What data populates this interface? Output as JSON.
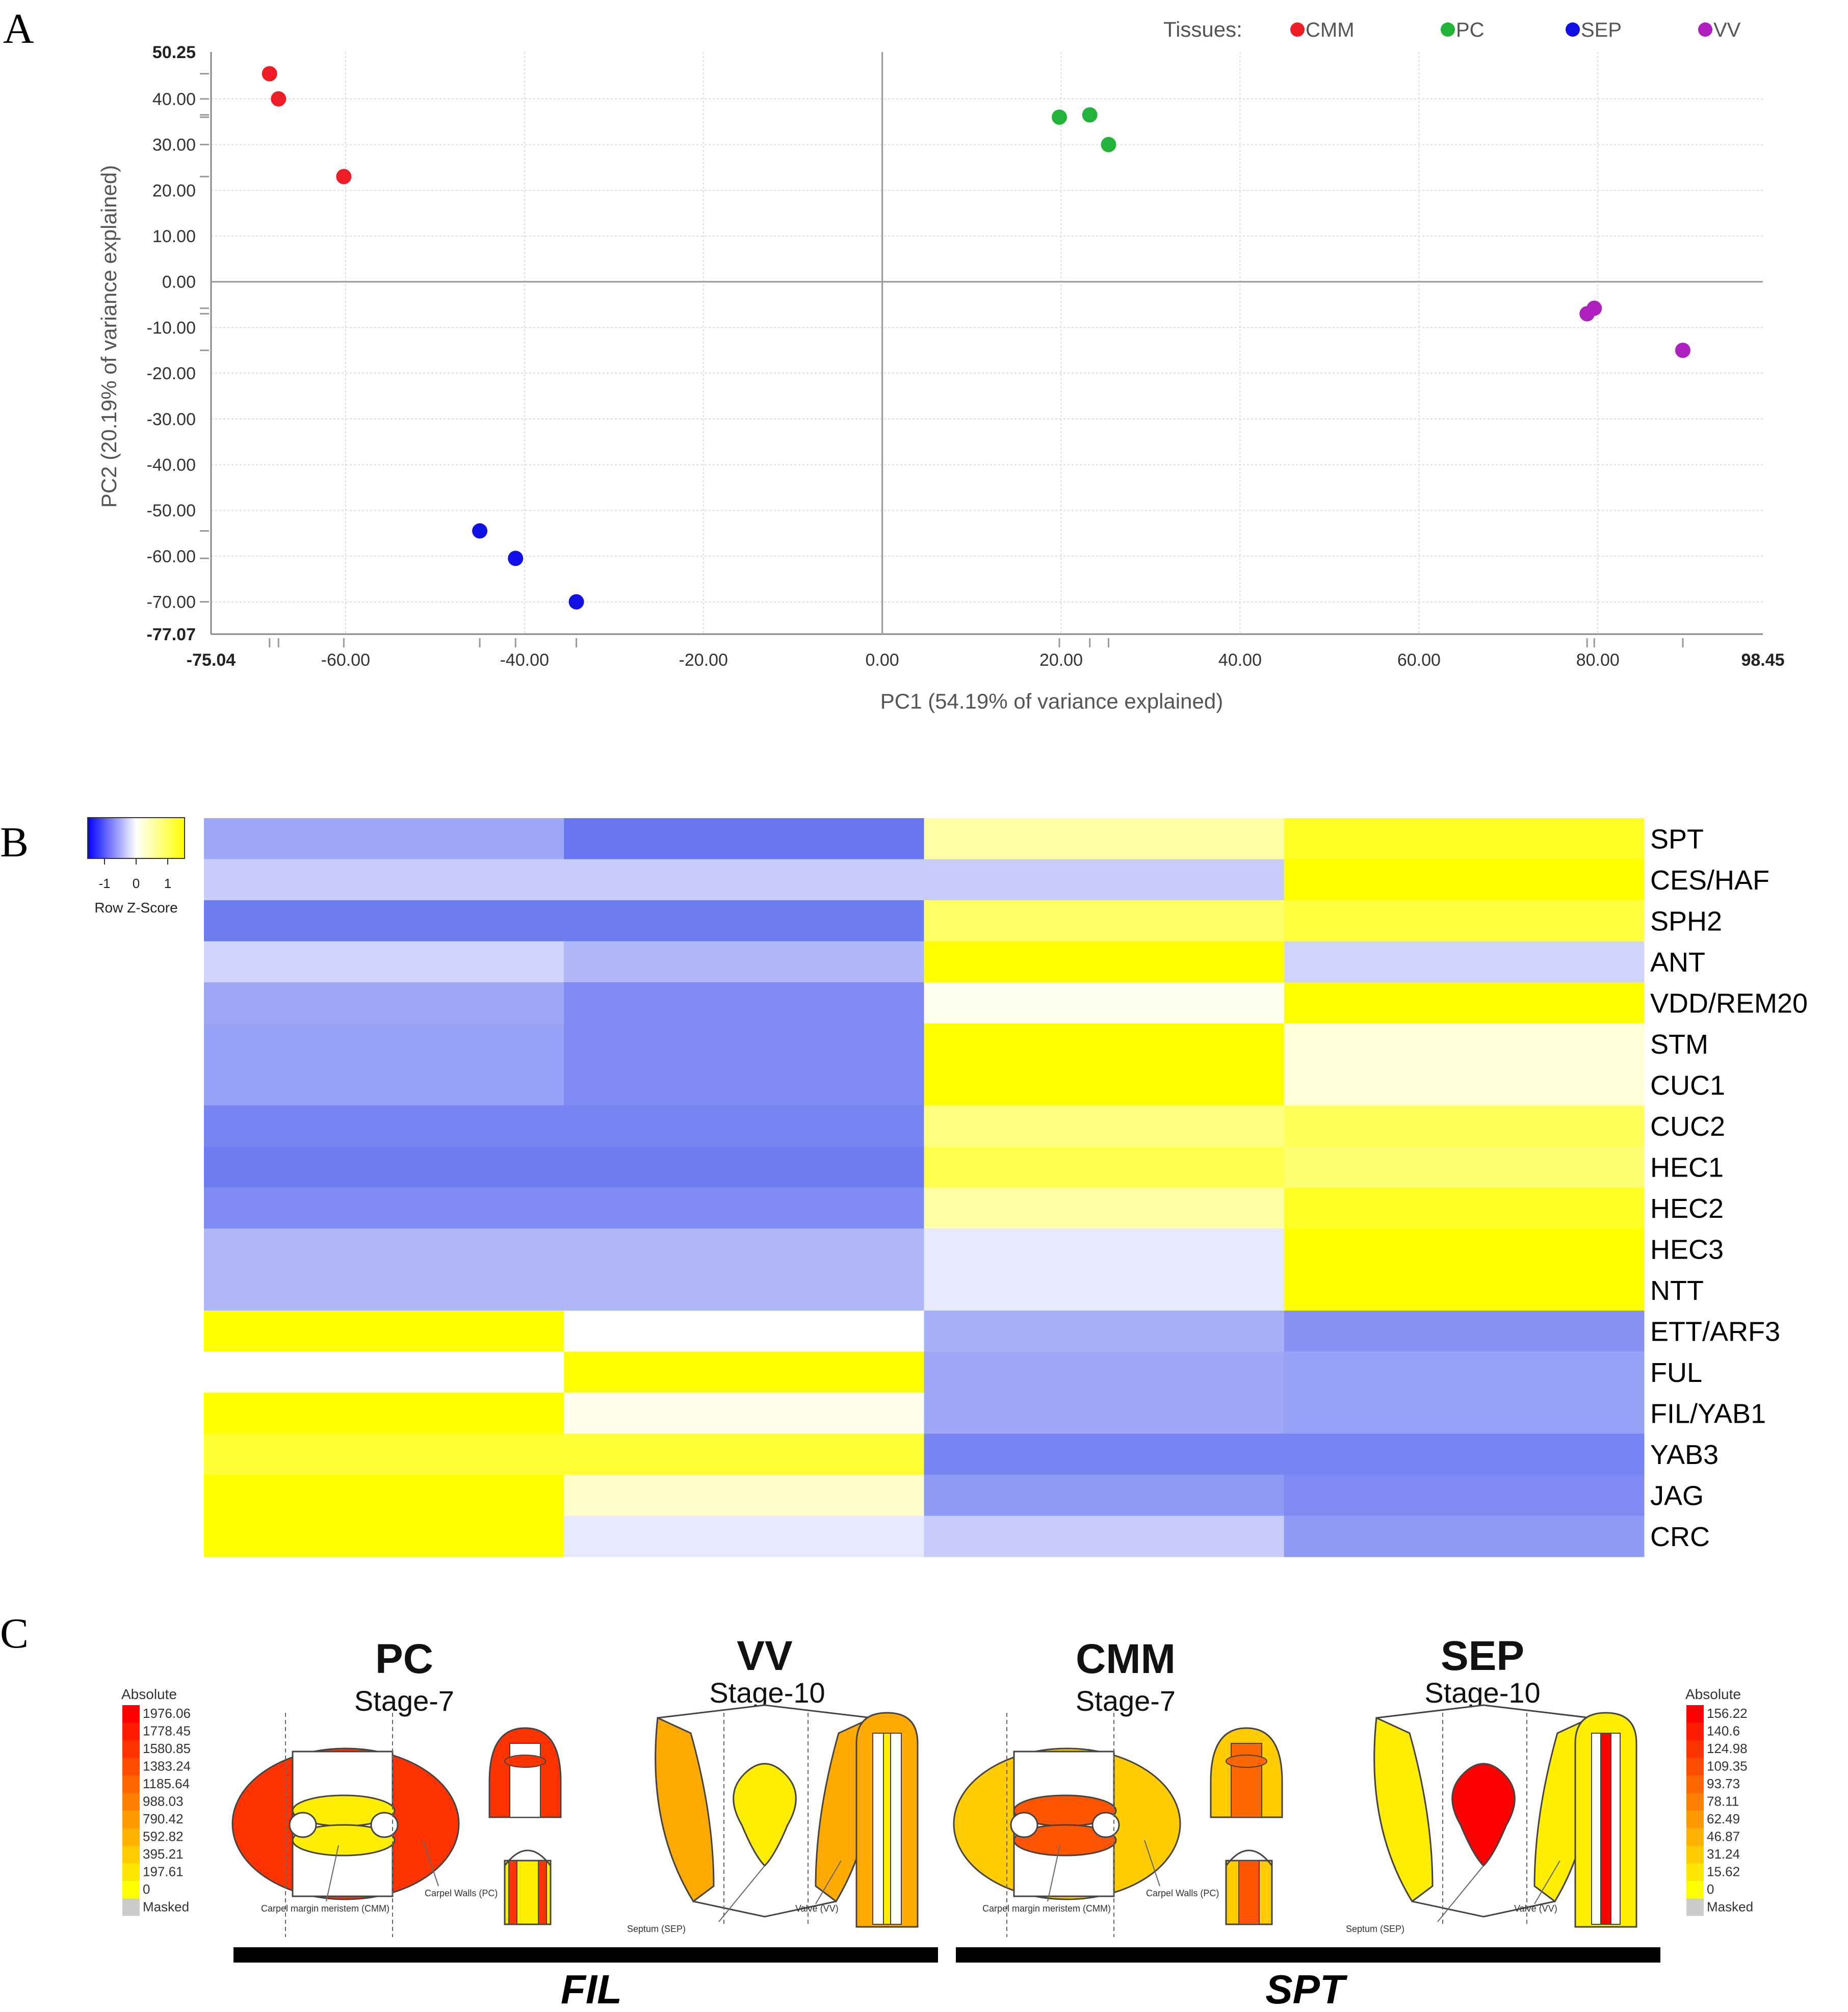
{
  "panel_labels": {
    "a": "A",
    "b": "B",
    "c": "C"
  },
  "chart_data": [
    {
      "type": "scatter",
      "legend_title": "Tissues:",
      "legend_position": "top-right",
      "xlabel": "PC1 (54.19% of variance explained)",
      "ylabel": "PC2 (20.19% of variance explained)",
      "xlim": [
        -75.04,
        98.45
      ],
      "ylim": [
        -77.07,
        50.25
      ],
      "x_ticks": [
        -60,
        -40,
        -20,
        0,
        20,
        40,
        60,
        80
      ],
      "y_ticks": [
        40,
        30,
        20,
        10,
        0,
        -10,
        -20,
        -30,
        -40,
        -50,
        -60,
        -70
      ],
      "x_tick_labels": [
        "-60.00",
        "-40.00",
        "-20.00",
        "0.00",
        "20.00",
        "40.00",
        "60.00",
        "80.00"
      ],
      "y_tick_labels": [
        "40.00",
        "30.00",
        "20.00",
        "10.00",
        "0.00",
        "-10.00",
        "-20.00",
        "-30.00",
        "-40.00",
        "-50.00",
        "-60.00",
        "-70.00"
      ],
      "x_bound_labels": [
        "-75.04",
        "98.45"
      ],
      "y_bound_labels": [
        "50.25",
        "-77.07"
      ],
      "grid": true,
      "series": [
        {
          "name": "CMM",
          "color": "#ee1c25",
          "points": [
            [
              -68.5,
              45.5
            ],
            [
              -67.5,
              40.0
            ],
            [
              -60.2,
              23.0
            ]
          ]
        },
        {
          "name": "PC",
          "color": "#22b33a",
          "points": [
            [
              19.8,
              36.0
            ],
            [
              23.2,
              36.5
            ],
            [
              25.3,
              30.0
            ]
          ]
        },
        {
          "name": "SEP",
          "color": "#1010e6",
          "points": [
            [
              -45.0,
              -54.5
            ],
            [
              -41.0,
              -60.5
            ],
            [
              -34.2,
              -70.0
            ]
          ]
        },
        {
          "name": "VV",
          "color": "#b01fc0",
          "points": [
            [
              78.8,
              -7.0
            ],
            [
              79.6,
              -5.8
            ],
            [
              89.5,
              -15.0
            ]
          ]
        }
      ]
    },
    {
      "type": "heatmap",
      "colorbar": {
        "label": "Row Z-Score",
        "ticks": [
          "-1",
          "0",
          "1"
        ]
      },
      "rows": [
        "SPT",
        "CES/HAF",
        "SPH2",
        "ANT",
        "VDD/REM20",
        "STM",
        "CUC1",
        "CUC2",
        "HEC1",
        "HEC2",
        "HEC3",
        "NTT",
        "ETT/ARF3",
        "FUL",
        "FIL/YAB1",
        "YAB3",
        "JAG",
        "CRC"
      ],
      "columns": 4,
      "z_values": [
        [
          -0.6,
          -0.95,
          0.35,
          0.85
        ],
        [
          -0.35,
          -0.35,
          -0.35,
          1.0
        ],
        [
          -0.9,
          -0.9,
          0.6,
          0.75
        ],
        [
          -0.3,
          -0.5,
          1.0,
          -0.3
        ],
        [
          -0.6,
          -0.8,
          0.05,
          1.0
        ],
        [
          -0.65,
          -0.8,
          1.0,
          0.15
        ],
        [
          -0.65,
          -0.8,
          1.0,
          0.15
        ],
        [
          -0.85,
          -0.85,
          0.5,
          0.65
        ],
        [
          -0.9,
          -0.9,
          0.7,
          0.55
        ],
        [
          -0.8,
          -0.8,
          0.35,
          0.85
        ],
        [
          -0.5,
          -0.5,
          -0.15,
          1.0
        ],
        [
          -0.5,
          -0.5,
          -0.15,
          1.0
        ],
        [
          1.0,
          0.0,
          -0.55,
          -0.75
        ],
        [
          0.0,
          1.0,
          -0.6,
          -0.65
        ],
        [
          1.0,
          0.08,
          -0.6,
          -0.65
        ],
        [
          0.8,
          0.8,
          -0.85,
          -0.85
        ],
        [
          1.0,
          0.2,
          -0.7,
          -0.8
        ],
        [
          1.0,
          -0.15,
          -0.35,
          -0.7
        ]
      ]
    }
  ],
  "efp": {
    "legend_left": {
      "title": "Absolute",
      "values": [
        "1976.06",
        "1778.45",
        "1580.85",
        "1383.24",
        "1185.64",
        "988.03",
        "790.42",
        "592.82",
        "395.21",
        "197.61",
        "0"
      ],
      "masked": "Masked"
    },
    "legend_right": {
      "title": "Absolute",
      "values": [
        "156.22",
        "140.6",
        "124.98",
        "109.35",
        "93.73",
        "78.11",
        "62.49",
        "46.87",
        "31.24",
        "15.62",
        "0"
      ],
      "masked": "Masked"
    },
    "scale_colors": [
      "#ff0000",
      "#ff1a00",
      "#ff3300",
      "#ff4d00",
      "#ff6600",
      "#ff8000",
      "#ff9900",
      "#ffb300",
      "#ffcc00",
      "#ffe600",
      "#ffff00"
    ],
    "masked_color": "#cccccc",
    "tissues": [
      {
        "name": "PC",
        "stage": "Stage-7"
      },
      {
        "name": "VV",
        "stage": "Stage-10"
      },
      {
        "name": "CMM",
        "stage": "Stage-7"
      },
      {
        "name": "SEP",
        "stage": "Stage-10"
      }
    ],
    "annotations": {
      "cmm": "Carpel margin meristem (CMM)",
      "pc": "Carpel Walls (PC)",
      "sep": "Septum (SEP)",
      "vv": "Valve (VV)"
    },
    "genes": [
      "FIL",
      "SPT"
    ]
  }
}
